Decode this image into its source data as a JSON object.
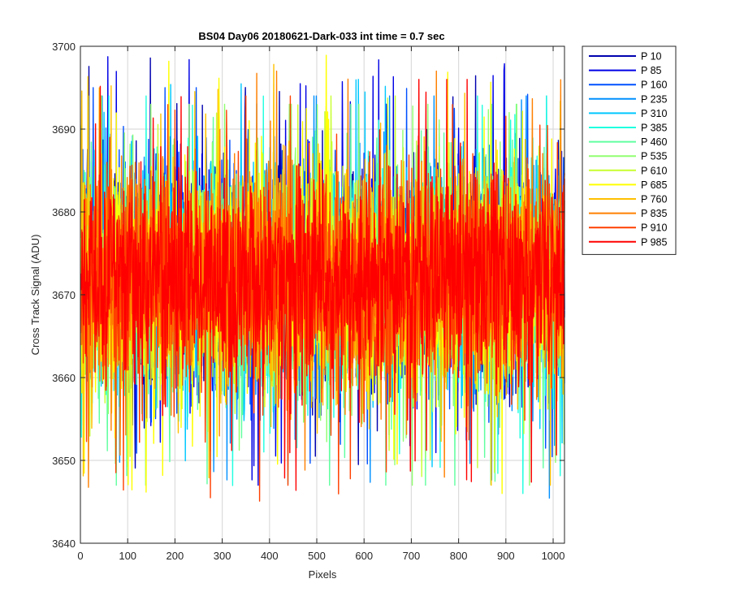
{
  "chart_data": {
    "type": "line",
    "title": "BS04 Day06 20180621-Dark-033 int time = 0.7 sec",
    "xlabel": "Pixels",
    "ylabel": "Cross Track Signal (ADU)",
    "xlim": [
      0,
      1024
    ],
    "ylim": [
      3640,
      3700
    ],
    "xticks": [
      0,
      100,
      200,
      300,
      400,
      500,
      600,
      700,
      800,
      900,
      1000
    ],
    "yticks": [
      3640,
      3650,
      3660,
      3670,
      3680,
      3690,
      3700
    ],
    "grid": true,
    "legend_location": "outside-top-right",
    "n_points": 1024,
    "series": [
      {
        "name": "P 10",
        "color": "#0000b0",
        "mean": 3672,
        "spread": 6.5,
        "min": 3646,
        "max": 3699
      },
      {
        "name": "P 85",
        "color": "#0000e6",
        "mean": 3672,
        "spread": 6.5,
        "min": 3647,
        "max": 3699
      },
      {
        "name": "P 160",
        "color": "#0050ff",
        "mean": 3672,
        "spread": 6.5,
        "min": 3649,
        "max": 3695
      },
      {
        "name": "P 235",
        "color": "#0090ff",
        "mean": 3672,
        "spread": 6.5,
        "min": 3644,
        "max": 3694
      },
      {
        "name": "P 310",
        "color": "#00c8ff",
        "mean": 3672,
        "spread": 6.5,
        "min": 3644,
        "max": 3696
      },
      {
        "name": "P 385",
        "color": "#20ffe0",
        "mean": 3672,
        "spread": 6.5,
        "min": 3646,
        "max": 3694
      },
      {
        "name": "P 460",
        "color": "#60ffa0",
        "mean": 3672,
        "spread": 6.5,
        "min": 3647,
        "max": 3693
      },
      {
        "name": "P 535",
        "color": "#90ff70",
        "mean": 3672,
        "spread": 6.5,
        "min": 3647,
        "max": 3693
      },
      {
        "name": "P 610",
        "color": "#c8ff30",
        "mean": 3672,
        "spread": 6.5,
        "min": 3648,
        "max": 3694
      },
      {
        "name": "P 685",
        "color": "#ffff00",
        "mean": 3672,
        "spread": 6.5,
        "min": 3646,
        "max": 3699
      },
      {
        "name": "P 760",
        "color": "#ffc000",
        "mean": 3672,
        "spread": 6.5,
        "min": 3647,
        "max": 3699
      },
      {
        "name": "P 835",
        "color": "#ff8000",
        "mean": 3672,
        "spread": 6.5,
        "min": 3645,
        "max": 3697
      },
      {
        "name": "P 910",
        "color": "#ff4000",
        "mean": 3672,
        "spread": 6.5,
        "min": 3645,
        "max": 3694
      },
      {
        "name": "P 985",
        "color": "#ff0000",
        "mean": 3672,
        "spread": 6.0,
        "min": 3644,
        "max": 3696
      }
    ]
  }
}
